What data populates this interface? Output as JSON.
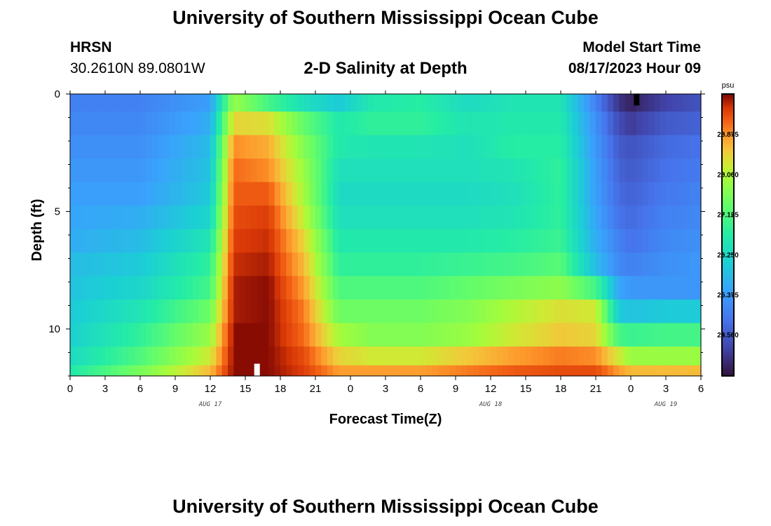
{
  "header": {
    "title": "University of Southern Mississippi Ocean Cube",
    "station": "HRSN",
    "coordinates": "30.2610N  89.0801W",
    "model_start_label": "Model Start Time",
    "model_start_value": "08/17/2023 Hour 09"
  },
  "footer": {
    "title": "University of Southern Mississippi Ocean Cube"
  },
  "chart_data": {
    "type": "heatmap",
    "title": "2-D Salinity at Depth",
    "xlabel": "Forecast Time(Z)",
    "ylabel": "Depth (ft)",
    "x_unit": "hours since AUG 17 00Z",
    "xlim": [
      0,
      54
    ],
    "ylim": [
      0,
      12
    ],
    "x_ticks": [
      0,
      3,
      6,
      9,
      12,
      15,
      18,
      21,
      24,
      27,
      30,
      33,
      36,
      39,
      42,
      45,
      48,
      51,
      54
    ],
    "x_tick_labels": [
      "0",
      "3",
      "6",
      "9",
      "12",
      "15",
      "18",
      "21",
      "0",
      "3",
      "6",
      "9",
      "12",
      "15",
      "18",
      "21",
      "0",
      "3",
      "6"
    ],
    "y_ticks": [
      0,
      5,
      10
    ],
    "y_tick_labels": [
      "0",
      "5",
      "10"
    ],
    "date_labels": [
      {
        "x": 12,
        "label": "AUG 17"
      },
      {
        "x": 36,
        "label": "AUG 18"
      },
      {
        "x": 51,
        "label": "AUG 19"
      }
    ],
    "colorbar": {
      "unit": "psu",
      "min": 23.6,
      "max": 29.75,
      "ticks": [
        24.5,
        25.375,
        26.25,
        27.125,
        28.0,
        28.875
      ],
      "tick_labels": [
        "24.500",
        "25.375",
        "26.250",
        "27.125",
        "28.000",
        "28.875"
      ]
    },
    "markers": [
      {
        "x": 16,
        "depth": 11.75,
        "color": "#ffffff",
        "note": "current time marker"
      },
      {
        "x": 48.5,
        "depth": 0.25,
        "color": "#000000",
        "note": "next-day marker"
      }
    ],
    "depth_levels": [
      0.25,
      1.25,
      2.25,
      3.25,
      4.25,
      5.25,
      6.25,
      7.25,
      8.25,
      9.25,
      10.25,
      11.25,
      11.85
    ],
    "time_keyframes": [
      0,
      6,
      12,
      14,
      17,
      20,
      23,
      26,
      30,
      34,
      38,
      42,
      45,
      47,
      48,
      51,
      54
    ],
    "salinity_keyframes": [
      [
        25.0,
        25.0,
        25.4,
        27.8,
        27.0,
        26.4,
        26.0,
        26.6,
        26.7,
        26.3,
        26.5,
        26.5,
        25.0,
        24.0,
        23.8,
        24.2,
        24.4
      ],
      [
        25.1,
        25.1,
        25.6,
        28.4,
        28.3,
        27.3,
        26.6,
        26.8,
        26.8,
        26.5,
        26.6,
        26.6,
        25.2,
        24.3,
        24.1,
        24.5,
        24.6
      ],
      [
        25.2,
        25.2,
        25.8,
        28.9,
        28.7,
        27.6,
        26.6,
        26.5,
        26.5,
        26.4,
        26.7,
        26.7,
        25.3,
        24.5,
        24.4,
        24.7,
        24.8
      ],
      [
        25.3,
        25.3,
        25.9,
        29.1,
        28.9,
        27.8,
        26.4,
        26.4,
        26.4,
        26.4,
        26.5,
        26.8,
        25.4,
        24.6,
        24.5,
        24.8,
        24.9
      ],
      [
        25.4,
        25.4,
        26.0,
        29.2,
        29.2,
        27.9,
        26.3,
        26.3,
        26.3,
        26.3,
        26.4,
        26.8,
        25.4,
        24.7,
        24.6,
        24.9,
        25.0
      ],
      [
        25.5,
        25.6,
        26.2,
        29.3,
        29.4,
        28.1,
        26.4,
        26.4,
        26.4,
        26.4,
        26.5,
        26.8,
        25.5,
        24.8,
        24.7,
        25.0,
        25.1
      ],
      [
        25.6,
        25.8,
        26.5,
        29.4,
        29.5,
        28.4,
        26.6,
        26.6,
        26.6,
        26.6,
        26.7,
        26.9,
        25.6,
        25.0,
        24.8,
        25.1,
        25.2
      ],
      [
        25.8,
        26.0,
        26.8,
        29.5,
        29.6,
        28.6,
        26.8,
        26.8,
        26.8,
        26.9,
        27.0,
        27.2,
        25.8,
        25.1,
        25.0,
        25.2,
        25.3
      ],
      [
        25.9,
        26.2,
        27.0,
        29.6,
        29.7,
        28.8,
        27.1,
        27.1,
        27.1,
        27.3,
        27.5,
        27.7,
        27.0,
        25.5,
        25.3,
        25.3,
        25.3
      ],
      [
        26.0,
        26.5,
        27.4,
        29.6,
        29.7,
        29.0,
        27.4,
        27.4,
        27.4,
        27.6,
        28.0,
        28.3,
        28.2,
        26.0,
        25.9,
        26.0,
        26.0
      ],
      [
        26.1,
        26.8,
        27.8,
        29.7,
        29.7,
        29.1,
        27.9,
        27.6,
        27.6,
        27.8,
        28.2,
        28.5,
        28.4,
        27.0,
        26.9,
        27.0,
        27.0
      ],
      [
        26.3,
        27.1,
        28.2,
        29.7,
        29.7,
        29.3,
        28.4,
        28.2,
        28.2,
        28.5,
        28.8,
        29.0,
        28.9,
        28.2,
        27.8,
        27.8,
        27.8
      ],
      [
        26.6,
        27.5,
        28.6,
        29.7,
        29.7,
        29.4,
        28.8,
        28.8,
        28.8,
        29.0,
        29.2,
        29.3,
        29.3,
        28.8,
        28.6,
        28.6,
        28.6
      ]
    ]
  }
}
